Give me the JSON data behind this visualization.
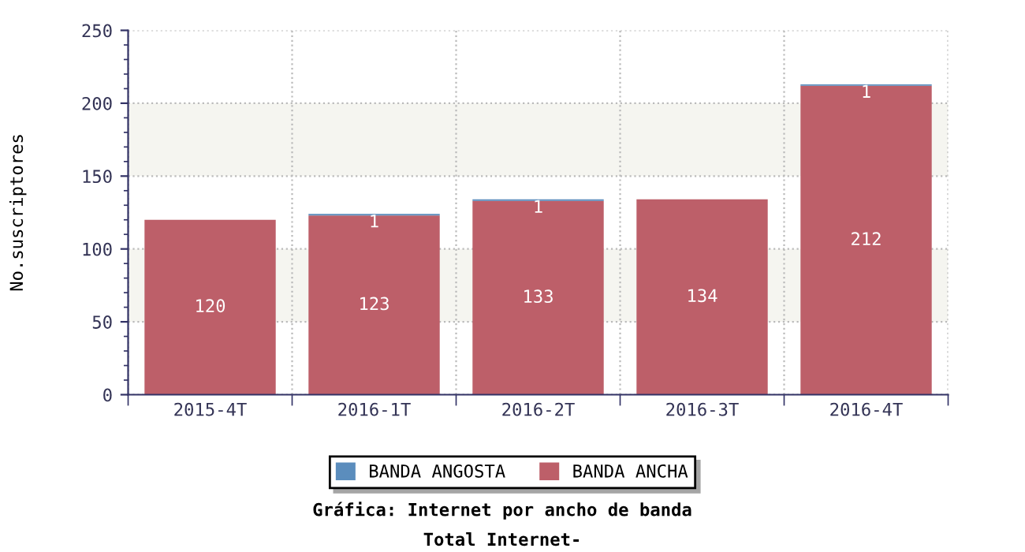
{
  "chart_data": {
    "type": "bar",
    "stacked": true,
    "title": "Gráfica: Internet por ancho de banda",
    "subtitle": "Total Internet-",
    "ylabel": "No.suscriptores",
    "categories": [
      "2015-4T",
      "2016-1T",
      "2016-2T",
      "2016-3T",
      "2016-4T"
    ],
    "series": [
      {
        "name": "BANDA ANCHA",
        "color": "#bd5f69",
        "values": [
          120,
          123,
          133,
          134,
          212
        ],
        "value_labels": [
          "120",
          "123",
          "133",
          "134",
          "212"
        ]
      },
      {
        "name": "BANDA ANGOSTA",
        "color": "#5b8dbd",
        "values": [
          0,
          1,
          1,
          0,
          1
        ],
        "value_labels": [
          null,
          "1",
          "1",
          null,
          "1"
        ]
      }
    ],
    "ylim": [
      0,
      250
    ],
    "yticks": [
      0,
      50,
      100,
      150,
      200,
      250
    ],
    "grid": true,
    "legend": "bottom",
    "bands": [
      {
        "axis": "y",
        "from": 50,
        "to": 100,
        "color": "#f5f5f0"
      },
      {
        "axis": "y",
        "from": 150,
        "to": 200,
        "color": "#f5f5f0"
      }
    ]
  }
}
